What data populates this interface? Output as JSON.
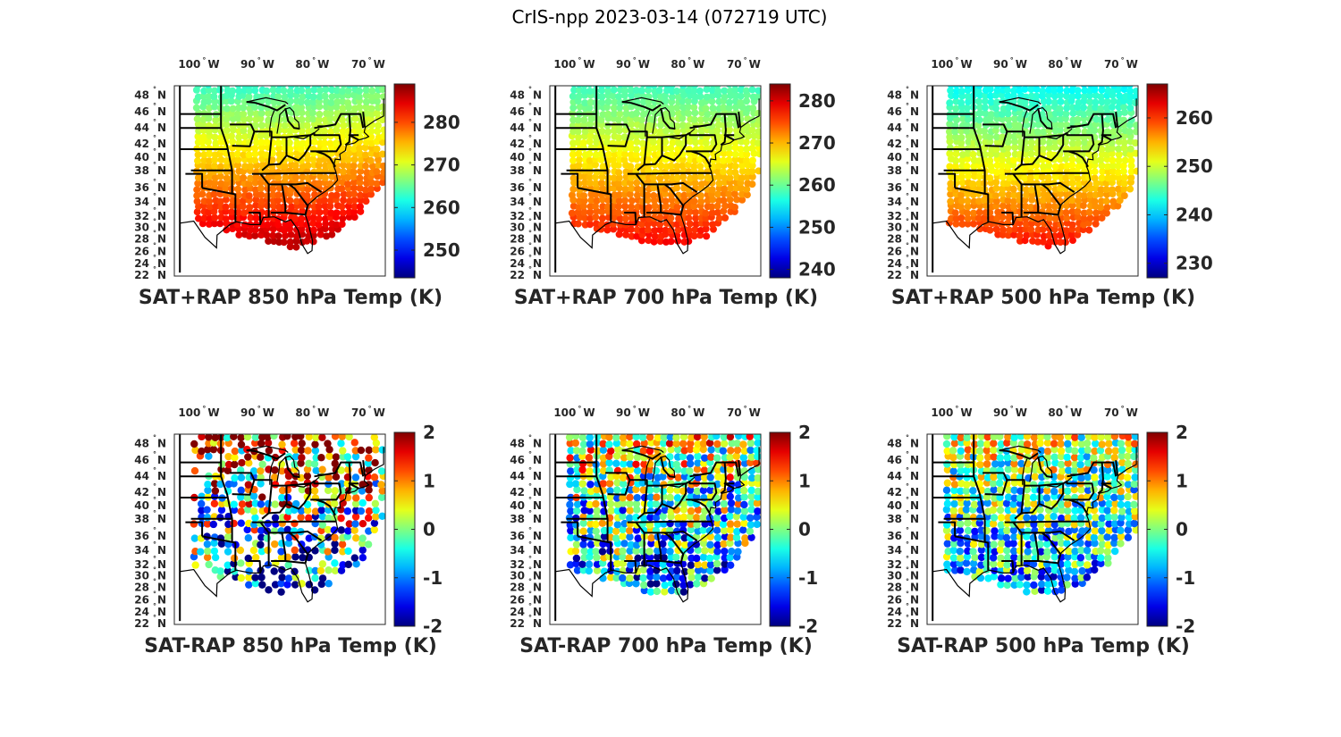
{
  "figure_title": "CrIS-npp 2023-03-14 (072719 UTC)",
  "map_ticks": {
    "lon_labels": [
      "100",
      "90",
      "80",
      "70"
    ],
    "lon_suffix": "W",
    "lat_labels": [
      "48",
      "46",
      "44",
      "42",
      "40",
      "38",
      "36",
      "34",
      "32",
      "30",
      "28",
      "26",
      "24",
      "22"
    ],
    "lat_suffix": "N",
    "degree_symbol": "°"
  },
  "panels": [
    {
      "name": "sat-plus-rap-850",
      "title": "SAT+RAP 850 hPa Temp (K)",
      "kind": "total",
      "colorbar": {
        "min": 243.5,
        "max": 289,
        "ticks": [
          "250",
          "260",
          "270",
          "280"
        ],
        "tick_values": [
          250,
          260,
          270,
          280
        ]
      },
      "field": {
        "south_value": 286,
        "north_value": 263,
        "east_warm": 2
      }
    },
    {
      "name": "sat-plus-rap-700",
      "title": "SAT+RAP 700 hPa Temp (K)",
      "kind": "total",
      "colorbar": {
        "min": 238,
        "max": 284,
        "ticks": [
          "240",
          "250",
          "260",
          "270",
          "280"
        ],
        "tick_values": [
          240,
          250,
          260,
          270,
          280
        ]
      },
      "field": {
        "south_value": 278,
        "north_value": 258,
        "east_warm": 0
      }
    },
    {
      "name": "sat-plus-rap-500",
      "title": "SAT+RAP 500 hPa Temp (K)",
      "kind": "total",
      "colorbar": {
        "min": 227,
        "max": 267,
        "ticks": [
          "230",
          "240",
          "250",
          "260"
        ],
        "tick_values": [
          230,
          240,
          250,
          260
        ]
      },
      "field": {
        "south_value": 261,
        "north_value": 242,
        "east_warm": 0
      }
    },
    {
      "name": "sat-minus-rap-850",
      "title": "SAT-RAP 850 hPa Temp (K)",
      "kind": "diff",
      "colorbar": {
        "min": -2,
        "max": 2,
        "ticks": [
          "-2",
          "-1",
          "0",
          "1",
          "2"
        ],
        "tick_values": [
          -2,
          -1,
          0,
          1,
          2
        ]
      },
      "field": {
        "north_bias": 1.4,
        "south_bias": -1.3,
        "noise": 1.2
      }
    },
    {
      "name": "sat-minus-rap-700",
      "title": "SAT-RAP 700 hPa Temp (K)",
      "kind": "diff",
      "colorbar": {
        "min": -2,
        "max": 2,
        "ticks": [
          "-2",
          "-1",
          "0",
          "1",
          "2"
        ],
        "tick_values": [
          -2,
          -1,
          0,
          1,
          2
        ]
      },
      "field": {
        "north_bias": 0.4,
        "south_bias": -0.9,
        "noise": 0.9
      }
    },
    {
      "name": "sat-minus-rap-500",
      "title": "SAT-RAP 500 hPa Temp (K)",
      "kind": "diff",
      "colorbar": {
        "min": -2,
        "max": 2,
        "ticks": [
          "-2",
          "-1",
          "0",
          "1",
          "2"
        ],
        "tick_values": [
          -2,
          -1,
          0,
          1,
          2
        ]
      },
      "field": {
        "north_bias": 0.3,
        "south_bias": -0.8,
        "noise": 0.7
      }
    }
  ]
}
